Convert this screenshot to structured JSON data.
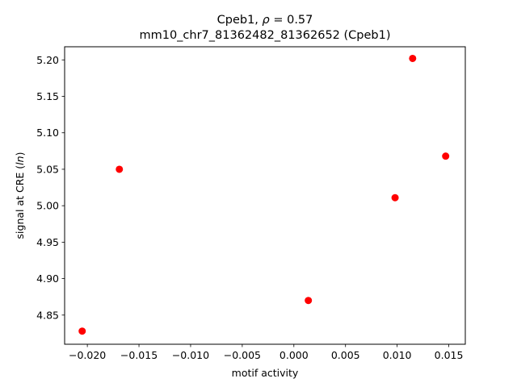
{
  "chart_data": {
    "type": "scatter",
    "title_line1_prefix": "Cpeb1, ",
    "title_rho_symbol": "ρ",
    "title_rho_value": " = 0.57",
    "title_line2": "mm10_chr7_81362482_81362652 (Cpeb1)",
    "xlabel": "motif activity",
    "ylabel_prefix": "signal at CRE (",
    "ylabel_italic": "ln",
    "ylabel_suffix": ")",
    "xlim": [
      -0.0222,
      0.0166
    ],
    "ylim": [
      4.81,
      5.218
    ],
    "xticks": [
      -0.02,
      -0.015,
      -0.01,
      -0.005,
      0.0,
      0.005,
      0.01,
      0.015
    ],
    "xtick_labels": [
      "−0.020",
      "−0.015",
      "−0.010",
      "−0.005",
      "0.000",
      "0.005",
      "0.010",
      "0.015"
    ],
    "yticks": [
      4.85,
      4.9,
      4.95,
      5.0,
      5.05,
      5.1,
      5.15,
      5.2
    ],
    "ytick_labels": [
      "4.85",
      "4.90",
      "4.95",
      "5.00",
      "5.05",
      "5.10",
      "5.15",
      "5.20"
    ],
    "grid": false,
    "marker_color": "#ff0000",
    "points": [
      {
        "x": -0.0205,
        "y": 4.828
      },
      {
        "x": -0.0169,
        "y": 5.05
      },
      {
        "x": 0.0014,
        "y": 4.87
      },
      {
        "x": 0.0098,
        "y": 5.011
      },
      {
        "x": 0.0115,
        "y": 5.202
      },
      {
        "x": 0.0147,
        "y": 5.068
      }
    ]
  }
}
